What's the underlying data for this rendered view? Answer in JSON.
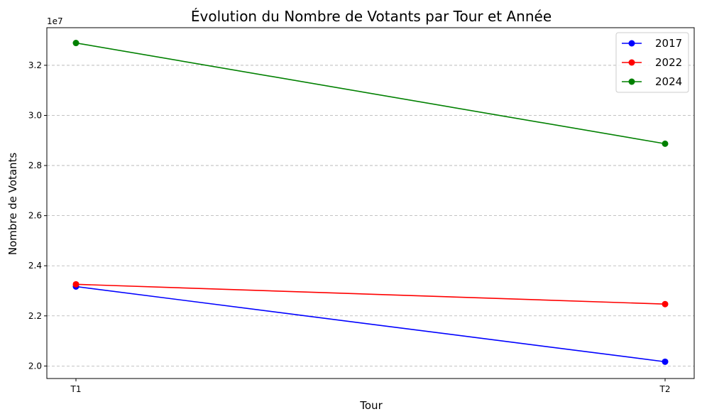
{
  "chart_data": {
    "type": "line",
    "title": "Évolution du Nombre de Votants par Tour et Année",
    "xlabel": "Tour",
    "ylabel": "Nombre de Votants",
    "y_offset_label": "1e7",
    "categories": [
      "T1",
      "T2"
    ],
    "ylim": [
      19500000,
      33500000
    ],
    "yticks": [
      20000000,
      22000000,
      24000000,
      26000000,
      28000000,
      30000000,
      32000000
    ],
    "ytick_labels": [
      "2.0",
      "2.2",
      "2.4",
      "2.6",
      "2.8",
      "3.0",
      "3.2"
    ],
    "grid": "horizontal dashed",
    "legend_position": "top-right",
    "series": [
      {
        "name": "2017",
        "color": "#0000ff",
        "values": [
          23170000,
          20170000
        ]
      },
      {
        "name": "2022",
        "color": "#ff0000",
        "values": [
          23260000,
          22470000
        ]
      },
      {
        "name": "2024",
        "color": "#008000",
        "values": [
          32890000,
          28870000
        ]
      }
    ]
  }
}
